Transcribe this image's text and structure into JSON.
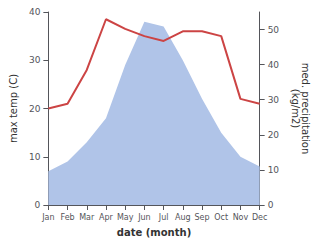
{
  "chart_data": {
    "type": "line",
    "categories": [
      "Jan",
      "Feb",
      "Mar",
      "Apr",
      "May",
      "Jun",
      "Jul",
      "Aug",
      "Sep",
      "Oct",
      "Nov",
      "Dec"
    ],
    "xlabel": "date (month)",
    "ylabel": "max temp (C)",
    "y2label": "med. precipitation\n(kg/m2)",
    "ylim": [
      0,
      40
    ],
    "yticks": [
      0,
      10,
      20,
      30,
      40
    ],
    "y2lim": [
      0,
      55
    ],
    "y2ticks": [
      0,
      10,
      20,
      30,
      40,
      50
    ],
    "grid": false,
    "series": [
      {
        "type": "area",
        "color": "#b0c4e8",
        "values": [
          7,
          9,
          13,
          18,
          29,
          38,
          37,
          30,
          22,
          15,
          10,
          8
        ]
      },
      {
        "type": "line",
        "color": "#cc4444",
        "values": [
          20,
          21,
          28,
          38.5,
          36.5,
          35,
          34,
          36,
          36,
          35,
          22,
          21
        ]
      }
    ]
  }
}
